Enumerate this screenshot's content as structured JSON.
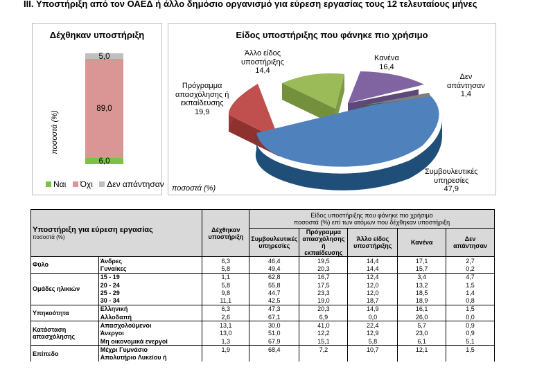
{
  "heading": "III. Υποστήριξη από τον ΟΑΕΔ ή άλλο δημόσιο οργανισμό για εύρεση εργασίας τους 12 τελευταίους μήνες",
  "left_chart_title": "Δέχθηκαν υποστήριξη",
  "right_chart_title": "Είδος υποστήριξης που φάνηκε πιο χρήσιμο",
  "percent_note": "ποσοστά (%)",
  "colors": {
    "yes": "#7dc242",
    "no": "#d99694",
    "na": "#bfbfbf",
    "blue": "#4f81bd",
    "red": "#c0504d",
    "green": "#9bbb59",
    "purple": "#8064a2",
    "gray": "#7f7f7f"
  },
  "chart_data": [
    {
      "type": "bar",
      "stacked": true,
      "title": "Δέχθηκαν υποστήριξη",
      "ylabel": "ποσοστά (%)",
      "categories": [
        ""
      ],
      "series": [
        {
          "name": "Ναι",
          "values": [
            6.0
          ],
          "label": "6,0"
        },
        {
          "name": "Όχι",
          "values": [
            89.0
          ],
          "label": "89,0"
        },
        {
          "name": "Δεν απάντησαν",
          "values": [
            5.0
          ],
          "label": "5,0"
        }
      ],
      "ylim": [
        0,
        100
      ],
      "legend": "bottom"
    },
    {
      "type": "pie",
      "title": "Είδος υποστήριξης που φάνηκε πιο χρήσιμο",
      "note": "ποσοστά (%)",
      "slices": [
        {
          "name": "Συμβουλευτικές υπηρεσίες",
          "value": 47.9,
          "label": "47,9"
        },
        {
          "name": "Πρόγραμμα απασχόλησης ή εκπαίδευσης",
          "value": 19.9,
          "label": "19,9"
        },
        {
          "name": "Άλλο είδος υποστήριξης",
          "value": 14.4,
          "label": "14,4"
        },
        {
          "name": "Κανένα",
          "value": 16.4,
          "label": "16,4"
        },
        {
          "name": "Δεν απάντησαν",
          "value": 1.4,
          "label": "1,4"
        }
      ]
    }
  ],
  "pie_labels": {
    "counsel": [
      "Συμβουλευτικές",
      "υπηρεσίες",
      "47,9"
    ],
    "program": [
      "Πρόγραμμα",
      "απασχόλησης ή",
      "εκπαίδευσης",
      "19,9"
    ],
    "other": [
      "Άλλο είδος",
      "υποστήριξης",
      "14,4"
    ],
    "none": [
      "Κανένα",
      "16,4"
    ],
    "na": [
      "Δεν",
      "απάντησαν",
      "1,4"
    ]
  },
  "table": {
    "title": "Υποστήριξη για εύρεση εργασίας",
    "subtitle": "ποσοστά (%)",
    "col_received": [
      "Δέχθηκαν",
      "υποστήριξη"
    ],
    "group_header": [
      "Είδος υποστήριξης που φάνηκε πιο χρήσιμο",
      "ποσοστά (%) επί των ατόμων που δέχθηκαν υποστήριξη"
    ],
    "cols": [
      [
        "Συμβουλευτικές",
        "υπηρεσίες"
      ],
      [
        "Πρόγραμμα",
        "απασχόλησης ή",
        "εκπαίδευσης"
      ],
      [
        "Άλλο είδος",
        "υποστήριξης"
      ],
      [
        "Κανένα"
      ],
      [
        "Δεν",
        "απάντησαν"
      ]
    ],
    "groups": [
      {
        "name": [
          "Φύλο"
        ],
        "rows": [
          {
            "label": "Άνδρες",
            "values": [
              "6,3",
              "46,4",
              "19,5",
              "14,4",
              "17,1",
              "2,7"
            ]
          },
          {
            "label": "Γυναίκες",
            "values": [
              "5,8",
              "49,4",
              "20,3",
              "14,4",
              "15,7",
              "0,2"
            ]
          }
        ]
      },
      {
        "name": [
          "Ομάδες ηλικιών"
        ],
        "rows": [
          {
            "label": "15 - 19",
            "values": [
              "1,1",
              "62,8",
              "16,7",
              "12,4",
              "3,4",
              "4,7"
            ]
          },
          {
            "label": "20 - 24",
            "values": [
              "5,8",
              "55,8",
              "17,5",
              "12,0",
              "13,2",
              "1,5"
            ]
          },
          {
            "label": "25 - 29",
            "values": [
              "9,8",
              "44,7",
              "23,3",
              "12,0",
              "18,5",
              "1,4"
            ]
          },
          {
            "label": "30 - 34",
            "values": [
              "11,1",
              "42,5",
              "19,0",
              "18,7",
              "18,9",
              "0,8"
            ]
          }
        ]
      },
      {
        "name": [
          "Υπηκοότητα"
        ],
        "rows": [
          {
            "label": "Ελληνική",
            "values": [
              "6,3",
              "47,3",
              "20,3",
              "14,9",
              "16,1",
              "1,5"
            ]
          },
          {
            "label": "Αλλοδαπή",
            "values": [
              "2,6",
              "67,1",
              "6,9",
              "0,0",
              "26,0",
              "0,0"
            ]
          }
        ]
      },
      {
        "name": [
          "Κατάσταση",
          "απασχόλησης"
        ],
        "rows": [
          {
            "label": "Απασχολούμενοι",
            "values": [
              "13,1",
              "30,0",
              "41,0",
              "22,4",
              "5,7",
              "0,9"
            ]
          },
          {
            "label": "Άνεργοι",
            "values": [
              "13,0",
              "51,0",
              "12,2",
              "12,9",
              "23,0",
              "0,9"
            ]
          },
          {
            "label": "Μη οικονομικά ενεργοί",
            "values": [
              "1,3",
              "67,9",
              "15,1",
              "5,8",
              "6,1",
              "5,1"
            ]
          }
        ]
      },
      {
        "name": [
          "Επίπεδο"
        ],
        "rows": [
          {
            "label": "Μέχρι Γυμνάσιο",
            "values": [
              "1,9",
              "68,4",
              "7,2",
              "10,7",
              "12,1",
              "1,5"
            ]
          },
          {
            "label": "Απολυτήριο Λυκείου ή",
            "values": [
              "",
              "",
              "",
              "",
              "",
              ""
            ]
          }
        ]
      }
    ]
  }
}
